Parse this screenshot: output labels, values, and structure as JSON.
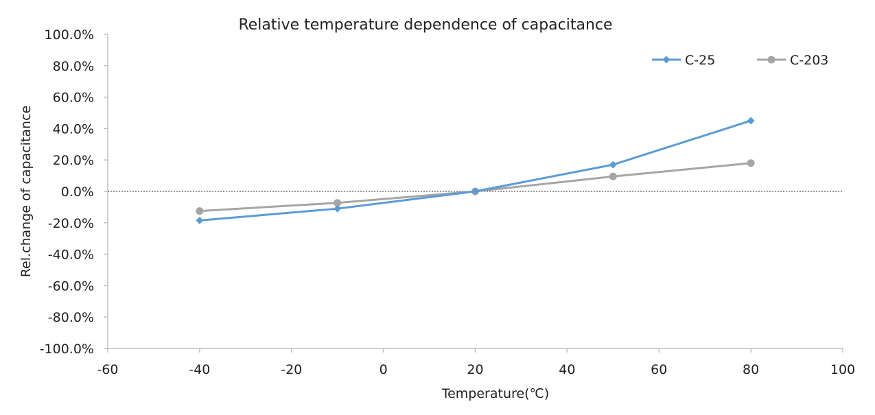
{
  "chart_data": {
    "type": "line",
    "title": "Relative temperature dependence of capacitance",
    "xlabel": "Temperature(℃)",
    "ylabel": "Rel.change of capacitance",
    "xlim": [
      -60,
      100
    ],
    "ylim": [
      -100,
      100
    ],
    "xticks": [
      -60,
      -40,
      -20,
      0,
      20,
      40,
      60,
      80,
      100
    ],
    "yticks": [
      100,
      80,
      60,
      40,
      20,
      0,
      -20,
      -40,
      -60,
      -80,
      -100
    ],
    "xtick_labels": [
      "-60",
      "-40",
      "-20",
      "0",
      "20",
      "40",
      "60",
      "80",
      "100"
    ],
    "ytick_labels": [
      "100.0%",
      "80.0%",
      "60.0%",
      "40.0%",
      "20.0%",
      "0.0%",
      "-20.0%",
      "-40.0%",
      "-60.0%",
      "-80.0%",
      "-100.0%"
    ],
    "grid": false,
    "zero_line": "dotted",
    "legend_position": "top-right",
    "x": [
      -40,
      -10,
      20,
      50,
      80
    ],
    "series": [
      {
        "name": "C-25",
        "color": "#5b9bd5",
        "marker": "diamond",
        "values": [
          -18.5,
          -11.0,
          0.0,
          17.0,
          45.0
        ]
      },
      {
        "name": "C-203",
        "color": "#a5a5a5",
        "marker": "circle",
        "values": [
          -12.5,
          -7.3,
          0.0,
          9.5,
          18.0
        ]
      }
    ]
  }
}
